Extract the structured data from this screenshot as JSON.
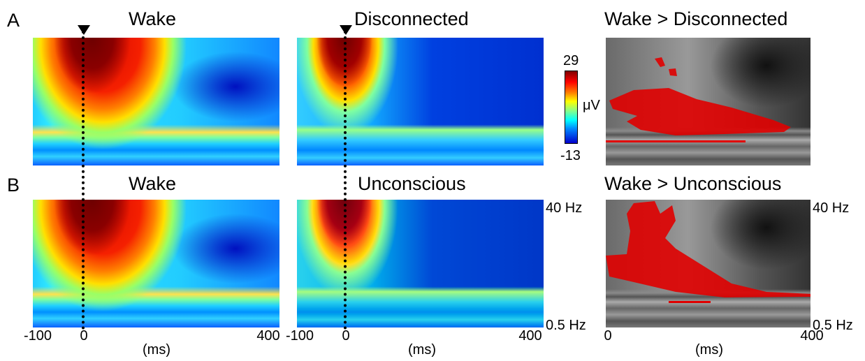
{
  "rows": [
    {
      "letter": "A",
      "panels": [
        {
          "title": "Wake"
        },
        {
          "title": "Disconnected"
        },
        {
          "title": "Wake > Disconnected"
        }
      ]
    },
    {
      "letter": "B",
      "panels": [
        {
          "title": "Wake"
        },
        {
          "title": "Unconscious"
        },
        {
          "title": "Wake > Unconscious"
        }
      ]
    }
  ],
  "colorbar": {
    "max": 29,
    "unit": "μV",
    "min": -13
  },
  "time_axis": {
    "ticks": [
      -100,
      0,
      400
    ],
    "contrast_ticks": [
      0,
      400
    ],
    "label": "(ms)"
  },
  "freq_axis": {
    "top": "40 Hz",
    "bottom": "0.5 Hz"
  }
}
